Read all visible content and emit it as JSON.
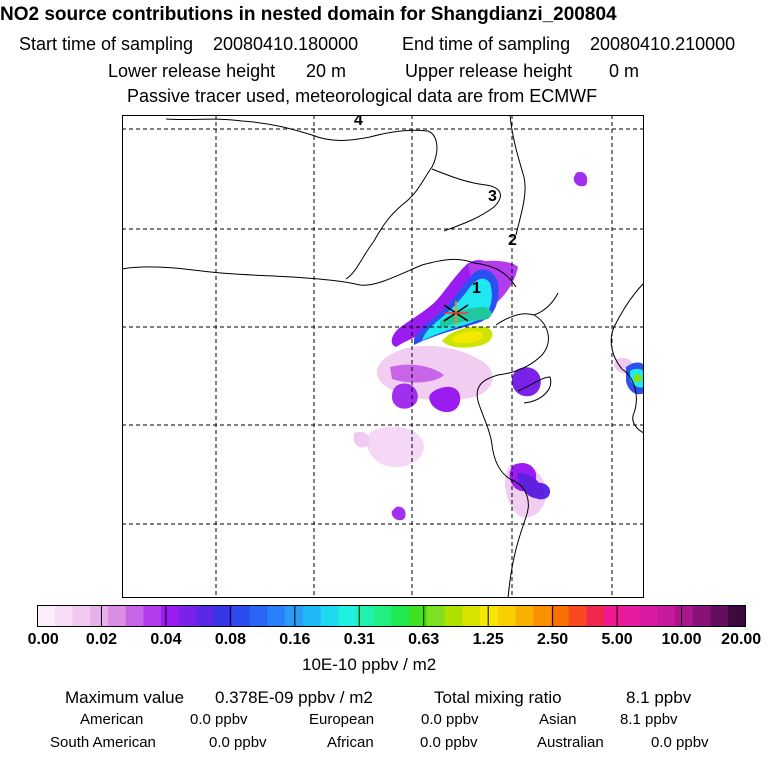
{
  "title": "NO2 source contributions in nested domain for Shangdianzi_200804",
  "header": {
    "start_label": "Start time of sampling",
    "start_value": "20080410.180000",
    "end_label": "End time of sampling",
    "end_value": "20080410.210000",
    "lower_label": "Lower release height",
    "lower_value": "20 m",
    "upper_label": "Upper release height",
    "upper_value": "0 m",
    "note": "Passive tracer used, meteorological data are from ECMWF"
  },
  "map": {
    "contour_labels": [
      "4",
      "3",
      "2",
      "1"
    ],
    "station_marker": "Shangdianzi",
    "plume_colors": [
      "#f2c8f2",
      "#e38ce8",
      "#9a00f0",
      "#6020e0",
      "#2a50f0",
      "#1e9cf8",
      "#20e8f0",
      "#cde400",
      "#f4e800"
    ]
  },
  "colorbar": {
    "colors": [
      "#fbeefb",
      "#f6dcf6",
      "#f0c8f0",
      "#e6b0ea",
      "#d98ee3",
      "#c864e8",
      "#b23cee",
      "#9a1cf0",
      "#7a22e8",
      "#5a28e8",
      "#3636e8",
      "#2c4cf0",
      "#2a66f4",
      "#2a80f8",
      "#2a9cf8",
      "#20b8f6",
      "#20d8f0",
      "#20f0e0",
      "#20f0b0",
      "#20f080",
      "#20e850",
      "#40e020",
      "#80e020",
      "#b0e000",
      "#d8e400",
      "#f4e800",
      "#f8d000",
      "#f8b000",
      "#f89000",
      "#f87000",
      "#f84a20",
      "#f02850",
      "#f01890",
      "#e81aa0",
      "#d81aa4",
      "#c81a9c",
      "#a8168c",
      "#88127a",
      "#640e5e",
      "#3c0a3c"
    ],
    "ticks": [
      "0.00",
      "0.02",
      "0.04",
      "0.08",
      "0.16",
      "0.31",
      "0.63",
      "1.25",
      "2.50",
      "5.00",
      "10.00",
      "20.00"
    ],
    "unit": "10E-10 ppbv / m2"
  },
  "stats": {
    "max_label": "Maximum value",
    "max_value": "0.378E-09 ppbv / m2",
    "total_label": "Total mixing ratio",
    "total_value": "8.1 ppbv",
    "regions": [
      {
        "name": "American",
        "value": "0.0 ppbv"
      },
      {
        "name": "European",
        "value": "0.0 ppbv"
      },
      {
        "name": "Asian",
        "value": "8.1 ppbv"
      },
      {
        "name": "South American",
        "value": "0.0 ppbv"
      },
      {
        "name": "African",
        "value": "0.0 ppbv"
      },
      {
        "name": "Australian",
        "value": "0.0 ppbv"
      }
    ]
  }
}
